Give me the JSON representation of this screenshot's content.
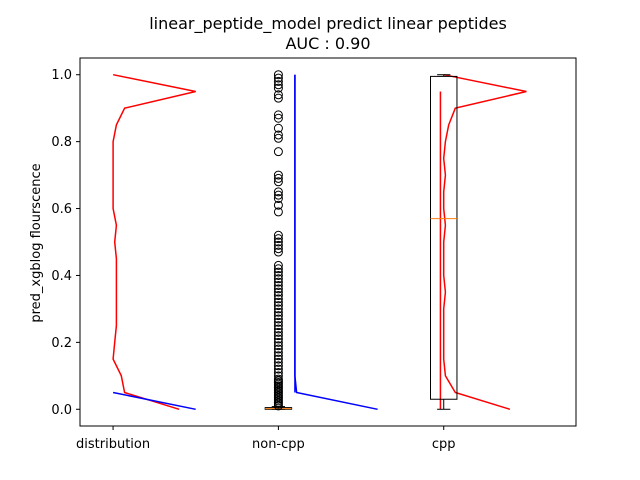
{
  "chart_data": {
    "type": "box",
    "title": "linear_peptide_model predict linear peptides",
    "subtitle": "AUC : 0.90",
    "xlabel": "",
    "ylabel": "pred_xgblog flourscence",
    "categories": [
      "distribution",
      "non-cpp",
      "cpp"
    ],
    "xlim": [
      0.8,
      3.8
    ],
    "ylim": [
      -0.05,
      1.05
    ],
    "yticks": [
      "0.0",
      "0.2",
      "0.4",
      "0.6",
      "0.8",
      "1.0"
    ],
    "grid": false,
    "colors": {
      "red": "#ff0000",
      "blue": "#0000ff",
      "median": "#ff7f0e",
      "box": "#000000"
    },
    "boxes": [
      {
        "category": "non-cpp",
        "position": 2,
        "whisker_low": 0.0,
        "q1": 0.0,
        "median": 0.002,
        "q3": 0.005,
        "whisker_high": 0.008,
        "outliers": [
          0.01,
          0.015,
          0.02,
          0.025,
          0.03,
          0.035,
          0.04,
          0.045,
          0.05,
          0.055,
          0.06,
          0.065,
          0.07,
          0.075,
          0.08,
          0.085,
          0.09,
          0.1,
          0.11,
          0.12,
          0.13,
          0.14,
          0.15,
          0.16,
          0.17,
          0.18,
          0.19,
          0.2,
          0.21,
          0.22,
          0.23,
          0.24,
          0.25,
          0.26,
          0.27,
          0.28,
          0.29,
          0.3,
          0.31,
          0.32,
          0.33,
          0.34,
          0.35,
          0.36,
          0.37,
          0.38,
          0.39,
          0.4,
          0.41,
          0.42,
          0.43,
          0.47,
          0.48,
          0.49,
          0.5,
          0.51,
          0.52,
          0.59,
          0.61,
          0.63,
          0.64,
          0.65,
          0.68,
          0.69,
          0.7,
          0.77,
          0.81,
          0.82,
          0.84,
          0.87,
          0.88,
          0.93,
          0.94,
          0.96,
          0.97,
          0.98,
          0.99,
          1.0
        ]
      },
      {
        "category": "cpp",
        "position": 3,
        "whisker_low": 0.0,
        "q1": 0.03,
        "median": 0.57,
        "q3": 0.995,
        "whisker_high": 1.0,
        "outliers": []
      }
    ],
    "distributions": [
      {
        "name": "",
        "color": "#ff0000",
        "base_x": 1.0,
        "points": [
          [
            1.0,
            1.0
          ],
          [
            1.5,
            0.95
          ],
          [
            1.07,
            0.9
          ],
          [
            1.02,
            0.85
          ],
          [
            1.0,
            0.8
          ],
          [
            1.0,
            0.75
          ],
          [
            1.0,
            0.7
          ],
          [
            1.0,
            0.65
          ],
          [
            1.0,
            0.6
          ],
          [
            1.02,
            0.55
          ],
          [
            1.01,
            0.5
          ],
          [
            1.02,
            0.45
          ],
          [
            1.02,
            0.4
          ],
          [
            1.02,
            0.35
          ],
          [
            1.02,
            0.3
          ],
          [
            1.02,
            0.25
          ],
          [
            1.01,
            0.2
          ],
          [
            1.0,
            0.15
          ],
          [
            1.05,
            0.1
          ],
          [
            1.07,
            0.05
          ],
          [
            1.4,
            0.0
          ]
        ]
      },
      {
        "name": "",
        "color": "#0000ff",
        "base_x": 1.0,
        "points": [
          [
            1.0,
            0.05
          ],
          [
            1.5,
            0.0
          ]
        ]
      },
      {
        "name": "",
        "color": "#0000ff",
        "base_x": 2.1,
        "points": [
          [
            2.1,
            1.0
          ],
          [
            2.1,
            0.95
          ],
          [
            2.1,
            0.9
          ],
          [
            2.1,
            0.85
          ],
          [
            2.1,
            0.8
          ],
          [
            2.1,
            0.75
          ],
          [
            2.1,
            0.7
          ],
          [
            2.1,
            0.65
          ],
          [
            2.1,
            0.6
          ],
          [
            2.1,
            0.55
          ],
          [
            2.1,
            0.5
          ],
          [
            2.1,
            0.45
          ],
          [
            2.1,
            0.4
          ],
          [
            2.1,
            0.35
          ],
          [
            2.1,
            0.3
          ],
          [
            2.1,
            0.25
          ],
          [
            2.1,
            0.2
          ],
          [
            2.1,
            0.15
          ],
          [
            2.1,
            0.1
          ],
          [
            2.11,
            0.05
          ],
          [
            2.6,
            0.0
          ]
        ]
      },
      {
        "name": "",
        "color": "#ff0000",
        "base_x": 3.0,
        "points": [
          [
            3.0,
            1.0
          ],
          [
            3.5,
            0.95
          ],
          [
            3.07,
            0.9
          ],
          [
            3.03,
            0.85
          ],
          [
            3.01,
            0.8
          ],
          [
            3.0,
            0.75
          ],
          [
            3.01,
            0.7
          ],
          [
            3.0,
            0.65
          ],
          [
            3.0,
            0.6
          ],
          [
            3.01,
            0.55
          ],
          [
            3.0,
            0.5
          ],
          [
            3.0,
            0.45
          ],
          [
            3.0,
            0.4
          ],
          [
            3.01,
            0.35
          ],
          [
            3.0,
            0.3
          ],
          [
            3.0,
            0.25
          ],
          [
            3.0,
            0.2
          ],
          [
            3.0,
            0.15
          ],
          [
            3.01,
            0.1
          ],
          [
            3.07,
            0.05
          ],
          [
            3.4,
            0.0
          ]
        ]
      }
    ],
    "vertical_lines": [
      {
        "x": 2.1,
        "color": "#0000ff",
        "y0": 0.05,
        "y1": 1.0
      },
      {
        "x": 2.98,
        "color": "#ff0000",
        "y0": 0.0,
        "y1": 0.95
      }
    ]
  }
}
